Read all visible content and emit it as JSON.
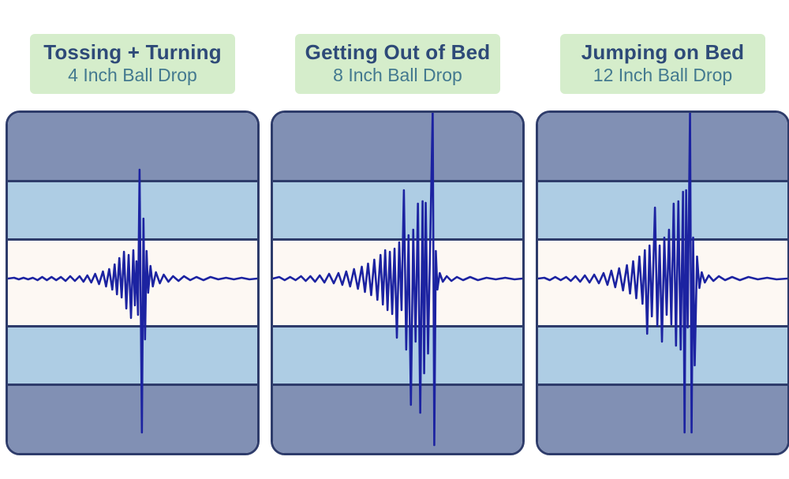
{
  "page": {
    "background": "#ffffff",
    "description_labels": {
      "panel_count": "3"
    }
  },
  "colors": {
    "dark_band": "#8190b4",
    "light_band": "#aecde4",
    "cream_band": "#fdf8f3",
    "separator_and_border": "#2e3c6b",
    "waveform": "#1c23a1",
    "header_background": "#d5edcb",
    "header_title_text": "#2e4a78",
    "header_subtitle_text": "#43798f"
  },
  "chart_data": [
    {
      "type": "line",
      "title": "Tossing + Turning",
      "subtitle": "4 Inch Ball Drop",
      "style": "seismograph",
      "x_range": [
        0,
        320
      ],
      "amplitude_range": [
        -213,
        218
      ],
      "baseline_amplitude": 0,
      "bands_from_top": [
        "dark",
        "light",
        "cream",
        "light",
        "dark"
      ],
      "points": [
        [
          0,
          0
        ],
        [
          8,
          1
        ],
        [
          14,
          -1
        ],
        [
          20,
          1
        ],
        [
          26,
          -1
        ],
        [
          32,
          1
        ],
        [
          38,
          -2
        ],
        [
          44,
          2
        ],
        [
          50,
          -2
        ],
        [
          56,
          2
        ],
        [
          62,
          -2
        ],
        [
          68,
          2
        ],
        [
          74,
          -3
        ],
        [
          80,
          3
        ],
        [
          86,
          -3
        ],
        [
          92,
          3
        ],
        [
          97,
          -4
        ],
        [
          102,
          4
        ],
        [
          107,
          -5
        ],
        [
          112,
          6
        ],
        [
          117,
          -7
        ],
        [
          122,
          9
        ],
        [
          126,
          -10
        ],
        [
          130,
          12
        ],
        [
          134,
          -14
        ],
        [
          137,
          18
        ],
        [
          140,
          -20
        ],
        [
          143,
          26
        ],
        [
          146,
          -24
        ],
        [
          149,
          34
        ],
        [
          152,
          -38
        ],
        [
          155,
          30
        ],
        [
          158,
          -50
        ],
        [
          161,
          36
        ],
        [
          163,
          -34
        ],
        [
          165,
          22
        ],
        [
          167,
          -46
        ],
        [
          169,
          138
        ],
        [
          172,
          -195
        ],
        [
          174,
          76
        ],
        [
          176,
          -77
        ],
        [
          178,
          35
        ],
        [
          180,
          -18
        ],
        [
          183,
          16
        ],
        [
          186,
          -10
        ],
        [
          190,
          8
        ],
        [
          195,
          -6
        ],
        [
          200,
          5
        ],
        [
          206,
          -4
        ],
        [
          212,
          3
        ],
        [
          219,
          -3
        ],
        [
          226,
          3
        ],
        [
          234,
          -2
        ],
        [
          242,
          2
        ],
        [
          251,
          -2
        ],
        [
          260,
          2
        ],
        [
          270,
          -1
        ],
        [
          280,
          1
        ],
        [
          290,
          -1
        ],
        [
          300,
          1
        ],
        [
          310,
          -1
        ],
        [
          320,
          0
        ]
      ]
    },
    {
      "type": "line",
      "title": "Getting Out of Bed",
      "subtitle": "8 Inch Ball Drop",
      "style": "seismograph",
      "x_range": [
        0,
        320
      ],
      "amplitude_range": [
        -213,
        218
      ],
      "baseline_amplitude": 0,
      "bands_from_top": [
        "dark",
        "light",
        "cream",
        "light",
        "dark"
      ],
      "points": [
        [
          0,
          0
        ],
        [
          8,
          2
        ],
        [
          15,
          -2
        ],
        [
          22,
          2
        ],
        [
          29,
          -2
        ],
        [
          36,
          3
        ],
        [
          42,
          -3
        ],
        [
          48,
          3
        ],
        [
          54,
          -4
        ],
        [
          60,
          4
        ],
        [
          66,
          -5
        ],
        [
          72,
          6
        ],
        [
          78,
          -6
        ],
        [
          84,
          7
        ],
        [
          89,
          -8
        ],
        [
          94,
          9
        ],
        [
          99,
          -10
        ],
        [
          104,
          12
        ],
        [
          109,
          -13
        ],
        [
          114,
          15
        ],
        [
          118,
          -17
        ],
        [
          122,
          19
        ],
        [
          126,
          -21
        ],
        [
          130,
          24
        ],
        [
          134,
          -27
        ],
        [
          138,
          30
        ],
        [
          141,
          -33
        ],
        [
          144,
          36
        ],
        [
          147,
          -40
        ],
        [
          150,
          34
        ],
        [
          153,
          -45
        ],
        [
          156,
          38
        ],
        [
          159,
          -75
        ],
        [
          162,
          46
        ],
        [
          165,
          -40
        ],
        [
          168,
          112
        ],
        [
          171,
          -90
        ],
        [
          174,
          55
        ],
        [
          177,
          -160
        ],
        [
          180,
          62
        ],
        [
          183,
          -80
        ],
        [
          186,
          95
        ],
        [
          189,
          -170
        ],
        [
          192,
          98
        ],
        [
          194,
          -120
        ],
        [
          196,
          96
        ],
        [
          199,
          -95
        ],
        [
          202,
          58
        ],
        [
          205,
          215
        ],
        [
          207,
          -211
        ],
        [
          209,
          35
        ],
        [
          211,
          -14
        ],
        [
          214,
          7
        ],
        [
          218,
          -4
        ],
        [
          223,
          3
        ],
        [
          229,
          -3
        ],
        [
          236,
          2
        ],
        [
          244,
          -2
        ],
        [
          253,
          2
        ],
        [
          263,
          -2
        ],
        [
          274,
          1
        ],
        [
          286,
          -1
        ],
        [
          298,
          1
        ],
        [
          310,
          -1
        ],
        [
          320,
          0
        ]
      ]
    },
    {
      "type": "line",
      "title": "Jumping on Bed",
      "subtitle": "12 Inch Ball Drop",
      "style": "seismograph",
      "x_range": [
        0,
        320
      ],
      "amplitude_range": [
        -213,
        218
      ],
      "baseline_amplitude": 0,
      "bands_from_top": [
        "dark",
        "light",
        "cream",
        "light",
        "dark"
      ],
      "points": [
        [
          0,
          0
        ],
        [
          8,
          1
        ],
        [
          15,
          -2
        ],
        [
          22,
          2
        ],
        [
          29,
          -2
        ],
        [
          36,
          2
        ],
        [
          42,
          -3
        ],
        [
          48,
          3
        ],
        [
          54,
          -4
        ],
        [
          60,
          4
        ],
        [
          66,
          -5
        ],
        [
          72,
          5
        ],
        [
          78,
          -6
        ],
        [
          84,
          7
        ],
        [
          89,
          -8
        ],
        [
          94,
          10
        ],
        [
          99,
          -11
        ],
        [
          104,
          13
        ],
        [
          109,
          -15
        ],
        [
          114,
          17
        ],
        [
          118,
          -19
        ],
        [
          122,
          22
        ],
        [
          126,
          -25
        ],
        [
          130,
          28
        ],
        [
          134,
          -32
        ],
        [
          137,
          36
        ],
        [
          140,
          -70
        ],
        [
          143,
          42
        ],
        [
          146,
          -48
        ],
        [
          150,
          90
        ],
        [
          153,
          -60
        ],
        [
          156,
          42
        ],
        [
          159,
          -80
        ],
        [
          162,
          52
        ],
        [
          165,
          -46
        ],
        [
          168,
          62
        ],
        [
          171,
          -58
        ],
        [
          174,
          95
        ],
        [
          177,
          -85
        ],
        [
          180,
          98
        ],
        [
          183,
          -90
        ],
        [
          186,
          110
        ],
        [
          188,
          -195
        ],
        [
          190,
          112
        ],
        [
          192,
          -62
        ],
        [
          195,
          215
        ],
        [
          197,
          -195
        ],
        [
          199,
          52
        ],
        [
          201,
          -110
        ],
        [
          204,
          28
        ],
        [
          207,
          -12
        ],
        [
          210,
          8
        ],
        [
          214,
          -5
        ],
        [
          219,
          4
        ],
        [
          225,
          -3
        ],
        [
          232,
          3
        ],
        [
          240,
          -2
        ],
        [
          249,
          2
        ],
        [
          259,
          -2
        ],
        [
          270,
          2
        ],
        [
          282,
          -1
        ],
        [
          294,
          1
        ],
        [
          306,
          -1
        ],
        [
          320,
          0
        ]
      ]
    }
  ]
}
